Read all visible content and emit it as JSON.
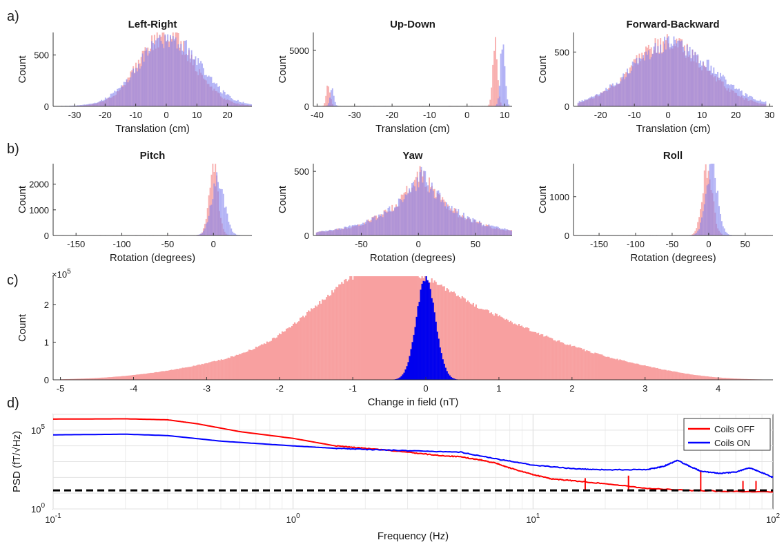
{
  "panel_letters": {
    "a": "a)",
    "b": "b)",
    "c": "c)",
    "d": "d)"
  },
  "colors": {
    "red_hist": "#f47c7c",
    "blue_hist": "#8080f0",
    "overlap": "#b04878",
    "c_red": "#f8a0a0",
    "c_blue": "#0000ee",
    "line_red": "#ff0000",
    "line_blue": "#0000ff",
    "dashed": "#000000"
  },
  "chart_data": [
    {
      "id": "lr",
      "type": "histogram",
      "title": "Left-Right",
      "xlabel": "Translation (cm)",
      "ylabel": "Count",
      "xlim": [
        -37,
        28
      ],
      "ylim": [
        0,
        720
      ],
      "xticks": [
        -30,
        -20,
        -10,
        0,
        10,
        20
      ],
      "yticks": [
        0,
        500
      ],
      "series": [
        {
          "color": "red",
          "shape": "gauss",
          "center": 0,
          "sd": 9,
          "peak": 690,
          "range": [
            -30,
            28
          ]
        },
        {
          "color": "blue",
          "shape": "gauss",
          "center": 1,
          "sd": 10,
          "peak": 650,
          "range": [
            -36,
            28
          ]
        }
      ]
    },
    {
      "id": "ud",
      "type": "histogram",
      "title": "Up-Down",
      "xlabel": "Translation (cm)",
      "ylabel": "Count",
      "xlim": [
        -41,
        12
      ],
      "ylim": [
        0,
        6600
      ],
      "xticks": [
        -40,
        -30,
        -20,
        -10,
        0,
        10
      ],
      "yticks": [
        0,
        5000
      ],
      "series": [
        {
          "color": "red",
          "peaks": [
            [
              -37,
              1900,
              0.5
            ],
            [
              7.5,
              6300,
              0.6
            ]
          ],
          "range": [
            -41,
            12
          ]
        },
        {
          "color": "blue",
          "peaks": [
            [
              -36,
              1500,
              0.5
            ],
            [
              9.5,
              5900,
              0.6
            ]
          ],
          "range": [
            -41,
            12
          ]
        }
      ]
    },
    {
      "id": "fb",
      "type": "histogram",
      "title": "Forward-Backward",
      "xlabel": "Translation (cm)",
      "ylabel": "Count",
      "xlim": [
        -28,
        31
      ],
      "ylim": [
        0,
        680
      ],
      "xticks": [
        -20,
        -10,
        0,
        10,
        20,
        30
      ],
      "yticks": [
        0,
        500
      ],
      "series": [
        {
          "color": "red",
          "shape": "gauss",
          "center": 0,
          "sd": 11,
          "peak": 580,
          "range": [
            -27,
            29
          ]
        },
        {
          "color": "blue",
          "shape": "gauss",
          "center": 1,
          "sd": 12,
          "peak": 560,
          "range": [
            -27,
            29
          ]
        }
      ]
    },
    {
      "id": "pitch",
      "type": "histogram",
      "title": "Pitch",
      "xlabel": "Rotation (degrees)",
      "ylabel": "Count",
      "xlim": [
        -175,
        42
      ],
      "ylim": [
        0,
        2800
      ],
      "xticks": [
        -150,
        -100,
        -50,
        0
      ],
      "yticks": [
        0,
        1000,
        2000
      ],
      "series": [
        {
          "color": "red",
          "peaks": [
            [
              0,
              2650,
              5
            ]
          ],
          "range": [
            -175,
            42
          ]
        },
        {
          "color": "blue",
          "peaks": [
            [
              5,
              2200,
              7
            ]
          ],
          "range": [
            -175,
            42
          ]
        }
      ]
    },
    {
      "id": "yaw",
      "type": "histogram",
      "title": "Yaw",
      "xlabel": "Rotation (degrees)",
      "ylabel": "Count",
      "xlim": [
        -92,
        82
      ],
      "ylim": [
        0,
        560
      ],
      "xticks": [
        -50,
        0,
        50
      ],
      "yticks": [
        0,
        500
      ],
      "series": [
        {
          "color": "red",
          "shape": "laplace",
          "center": 2,
          "scale": 30,
          "peak": 500,
          "range": [
            -90,
            82
          ]
        },
        {
          "color": "blue",
          "shape": "laplace",
          "center": 3,
          "scale": 32,
          "peak": 480,
          "range": [
            -90,
            82
          ]
        }
      ]
    },
    {
      "id": "roll",
      "type": "histogram",
      "title": "Roll",
      "xlabel": "Rotation (degrees)",
      "ylabel": "Count",
      "xlim": [
        -185,
        88
      ],
      "ylim": [
        0,
        1850
      ],
      "xticks": [
        -150,
        -100,
        -50,
        0,
        50
      ],
      "yticks": [
        0,
        1000
      ],
      "series": [
        {
          "color": "red",
          "peaks": [
            [
              -2,
              1750,
              7
            ]
          ],
          "range": [
            -185,
            88
          ]
        },
        {
          "color": "blue",
          "peaks": [
            [
              4,
              1800,
              8
            ]
          ],
          "range": [
            -185,
            88
          ]
        }
      ]
    },
    {
      "id": "c",
      "type": "histogram",
      "title": "",
      "xlabel": "Change in field (nT)",
      "ylabel": "Count",
      "y_multiplier": "×10",
      "y_multiplier_exp": "5",
      "xlim": [
        -5.1,
        4.75
      ],
      "ylim": [
        0,
        2.75
      ],
      "xticks": [
        -5,
        -4,
        -3,
        -2,
        -1,
        0,
        1,
        2,
        3,
        4
      ],
      "yticks": [
        0,
        1,
        2
      ],
      "series": [
        {
          "color": "red",
          "shape": "mixture",
          "range": [
            -5,
            4.75
          ]
        },
        {
          "color": "blue",
          "peaks": [
            [
              0,
              2.7,
              0.13
            ]
          ],
          "range": [
            -0.6,
            0.6
          ]
        }
      ]
    },
    {
      "id": "d",
      "type": "line",
      "xscale": "log",
      "yscale": "log",
      "xlabel": "Frequency (Hz)",
      "ylabel": "PSD (fT/√Hz)",
      "xlim": [
        0.1,
        100
      ],
      "ylim": [
        1,
        1000000
      ],
      "xticks": [
        {
          "v": 0.1,
          "b": "10",
          "e": "-1"
        },
        {
          "v": 1,
          "b": "10",
          "e": "0"
        },
        {
          "v": 10,
          "b": "10",
          "e": "1"
        },
        {
          "v": 100,
          "b": "10",
          "e": "2"
        }
      ],
      "yticks": [
        {
          "v": 1,
          "b": "10",
          "e": "0"
        },
        {
          "v": 100000,
          "b": "10",
          "e": "5"
        }
      ],
      "legend": {
        "position": "top-right",
        "entries": [
          "Coils OFF",
          "Coils ON"
        ]
      },
      "series": [
        {
          "name": "Coils OFF",
          "color": "red",
          "x": [
            0.1,
            0.2,
            0.3,
            0.4,
            0.6,
            1,
            1.5,
            2,
            3,
            4,
            5,
            6,
            7,
            8,
            10,
            12,
            15,
            20,
            30,
            50,
            100
          ],
          "y": [
            500000,
            520000,
            450000,
            250000,
            80000,
            30000,
            10000,
            7000,
            4000,
            2500,
            2000,
            1300,
            800,
            400,
            150,
            80,
            60,
            40,
            20,
            14,
            12
          ]
        },
        {
          "name": "Coils ON",
          "color": "blue",
          "x": [
            0.1,
            0.2,
            0.3,
            0.5,
            1,
            1.5,
            2,
            3,
            5,
            7,
            10,
            15,
            20,
            30,
            35,
            40,
            45,
            50,
            60,
            70,
            80,
            90,
            100
          ],
          "y": [
            50000,
            55000,
            45000,
            20000,
            10000,
            7000,
            6000,
            5000,
            4000,
            1500,
            600,
            350,
            300,
            320,
            500,
            1200,
            500,
            250,
            180,
            220,
            400,
            200,
            100
          ]
        },
        {
          "name": "",
          "color": "black",
          "dashed": true,
          "x": [
            0.1,
            100
          ],
          "y": [
            15,
            15
          ]
        }
      ]
    }
  ]
}
